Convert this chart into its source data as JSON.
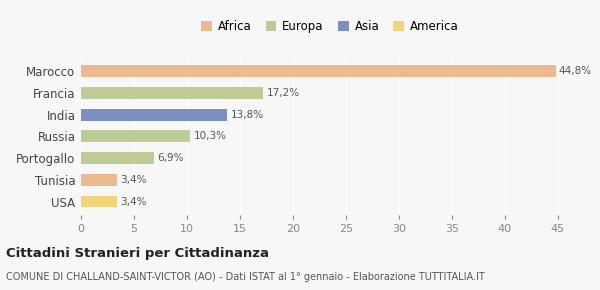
{
  "categories": [
    "Marocco",
    "Francia",
    "India",
    "Russia",
    "Portogallo",
    "Tunisia",
    "USA"
  ],
  "values": [
    44.8,
    17.2,
    13.8,
    10.3,
    6.9,
    3.4,
    3.4
  ],
  "labels": [
    "44,8%",
    "17,2%",
    "13,8%",
    "10,3%",
    "6,9%",
    "3,4%",
    "3,4%"
  ],
  "colors": [
    "#EDBA8F",
    "#BDCC96",
    "#7B8FC2",
    "#BDCC96",
    "#BDCC96",
    "#EDBA8F",
    "#F0D478"
  ],
  "legend": [
    {
      "label": "Africa",
      "color": "#EDBA8F"
    },
    {
      "label": "Europa",
      "color": "#BDCC96"
    },
    {
      "label": "Asia",
      "color": "#7B8FC2"
    },
    {
      "label": "America",
      "color": "#F0D478"
    }
  ],
  "xlim": [
    0,
    47
  ],
  "xticks": [
    0,
    5,
    10,
    15,
    20,
    25,
    30,
    35,
    40,
    45
  ],
  "title": "Cittadini Stranieri per Cittadinanza",
  "subtitle": "COMUNE DI CHALLAND-SAINT-VICTOR (AO) - Dati ISTAT al 1° gennaio - Elaborazione TUTTITALIA.IT",
  "background_color": "#f7f7f7",
  "plot_background": "#f7f7f7",
  "grid_color": "#ffffff"
}
